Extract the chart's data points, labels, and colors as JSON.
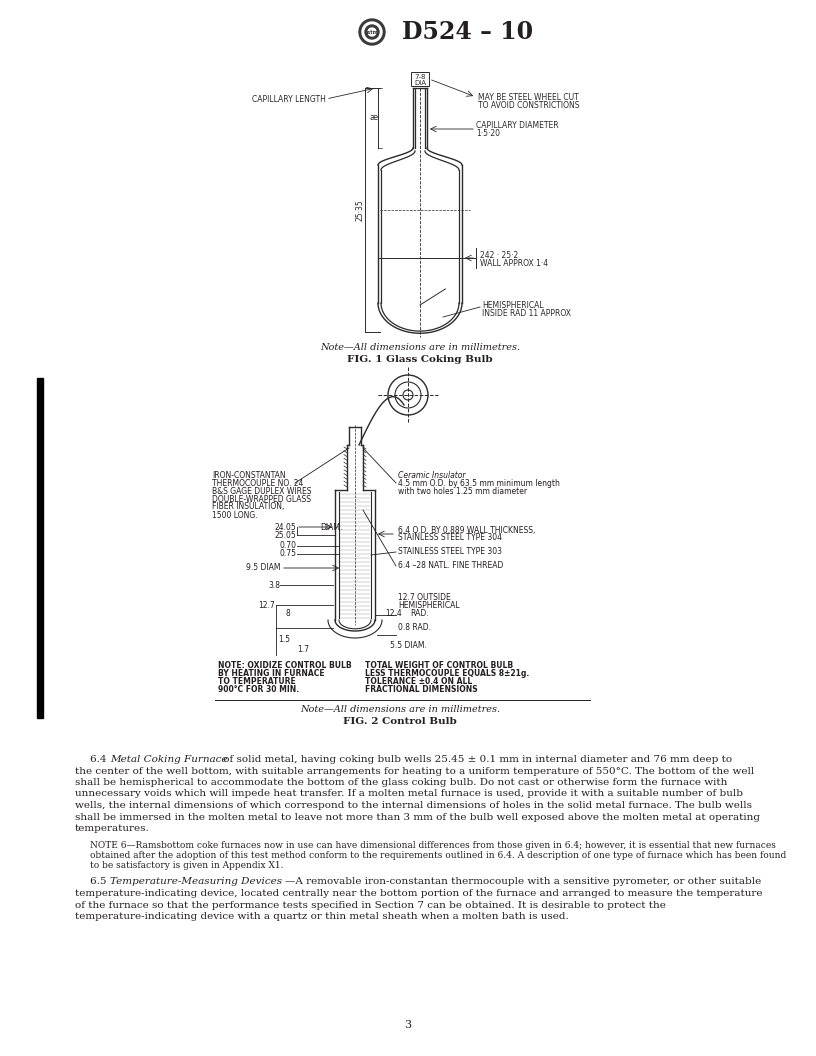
{
  "title": "D524 – 10",
  "page_number": "3",
  "background_color": "#ffffff",
  "text_color": "#231f20",
  "fig1_caption_note": "Note—All dimensions are in millimetres.",
  "fig1_caption": "FIG. 1 Glass Coking Bulb",
  "fig2_caption_note": "Note—All dimensions are in millimetres.",
  "fig2_caption": "FIG. 2 Control Bulb",
  "para_64_line1_normal": "6.4 ",
  "para_64_line1_italic": "Metal Coking Furnace",
  "para_64_line1_rest": " of solid metal, having coking bulb wells 25.45 ± 0.1 mm in internal diameter and 76 mm deep to",
  "para_64_lines": [
    "the center of the well bottom, with suitable arrangements for heating to a uniform temperature of 550°C. The bottom of the well",
    "shall be hemispherical to accommodate the bottom of the glass coking bulb. Do not cast or otherwise form the furnace with",
    "unnecessary voids which will impede heat transfer. If a molten metal furnace is used, provide it with a suitable number of bulb",
    "wells, the internal dimensions of which correspond to the internal dimensions of holes in the solid metal furnace. The bulb wells",
    "shall be immersed in the molten metal to leave not more than 3 mm of the bulb well exposed above the molten metal at operating",
    "temperatures."
  ],
  "note6_lines": [
    "NOTE 6—Ramsbottom coke furnaces now in use can have dimensional differences from those given in 6.4; however, it is essential that new furnaces",
    "obtained after the adoption of this test method conform to the requirements outlined in 6.4. A description of one type of furnace which has been found",
    "to be satisfactory is given in Appendix X1."
  ],
  "para_65_line1_normal": "6.5 ",
  "para_65_line1_italic": "Temperature-Measuring Devices",
  "para_65_line1_rest": "—A removable iron-constantan thermocouple with a sensitive pyrometer, or other suitable",
  "para_65_lines": [
    "temperature-indicating device, located centrally near the bottom portion of the furnace and arranged to measure the temperature",
    "of the furnace so that the performance tests specified in Section 7 can be obtained. It is desirable to protect the",
    "temperature-indicating device with a quartz or thin metal sheath when a molten bath is used."
  ],
  "lc": "#2a2a2a",
  "lc2": "#231f20"
}
